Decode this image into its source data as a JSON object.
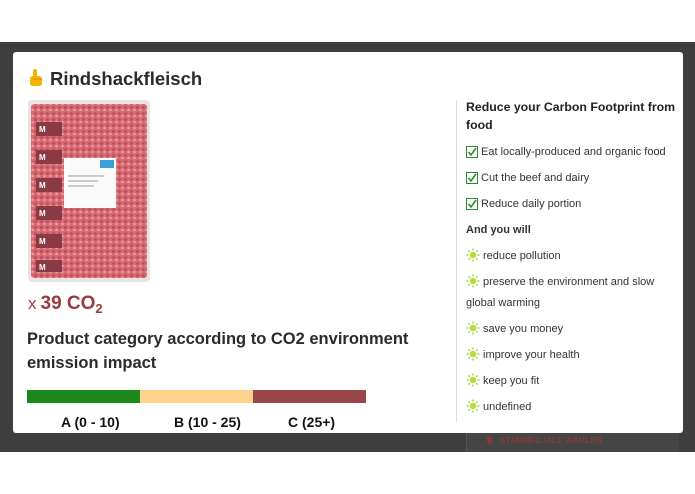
{
  "modal": {
    "title": "Rindshackfleisch",
    "emission": {
      "prefix": "x",
      "value": 39,
      "unit": "CO",
      "subscript": "2"
    },
    "category_heading": "Product category according to CO2 environment emission impact",
    "scale": [
      "A (0 - 10)",
      "B (10 - 25)",
      "C (25+)"
    ]
  },
  "tips": {
    "heading": "Reduce your Carbon Footprint from food",
    "actions": [
      "Eat locally-produced and organic food",
      "Cut the beef and dairy",
      "Reduce daily portion"
    ],
    "result_heading": "And you will",
    "results": [
      "reduce pollution",
      "preserve the environment and slow global warming",
      "save you money",
      "improve your health",
      "keep you fit",
      "undefined"
    ]
  },
  "background": {
    "button": "STAMMFILIALE WÄHLEN"
  }
}
